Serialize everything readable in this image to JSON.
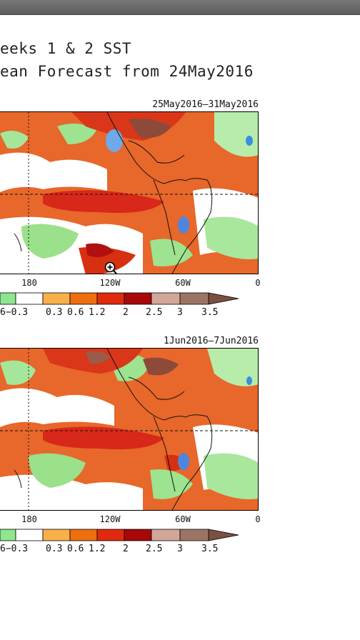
{
  "header": {
    "title_line1": "eeks 1 & 2 SST",
    "title_line2": "ean Forecast from 24May2016"
  },
  "panels": [
    {
      "date_range": "25May2016–31May2016",
      "lon_labels": [
        "180",
        "120W",
        "60W",
        "0"
      ]
    },
    {
      "date_range": "1Jun2016–7Jun2016",
      "lon_labels": [
        "180",
        "120W",
        "60W",
        "0"
      ]
    }
  ],
  "legend": {
    "labels": [
      "6−0.3",
      "0.3",
      "0.6",
      "1.2",
      "2",
      "2.5",
      "3",
      "3.5"
    ],
    "colors": [
      "#8ee68e",
      "#ffffff",
      "#f7b04a",
      "#ee6e10",
      "#e02a0e",
      "#a80808",
      "#d3a69a",
      "#9c7466",
      "#7a5040"
    ]
  },
  "cursor_icon": "zoom-in-icon"
}
